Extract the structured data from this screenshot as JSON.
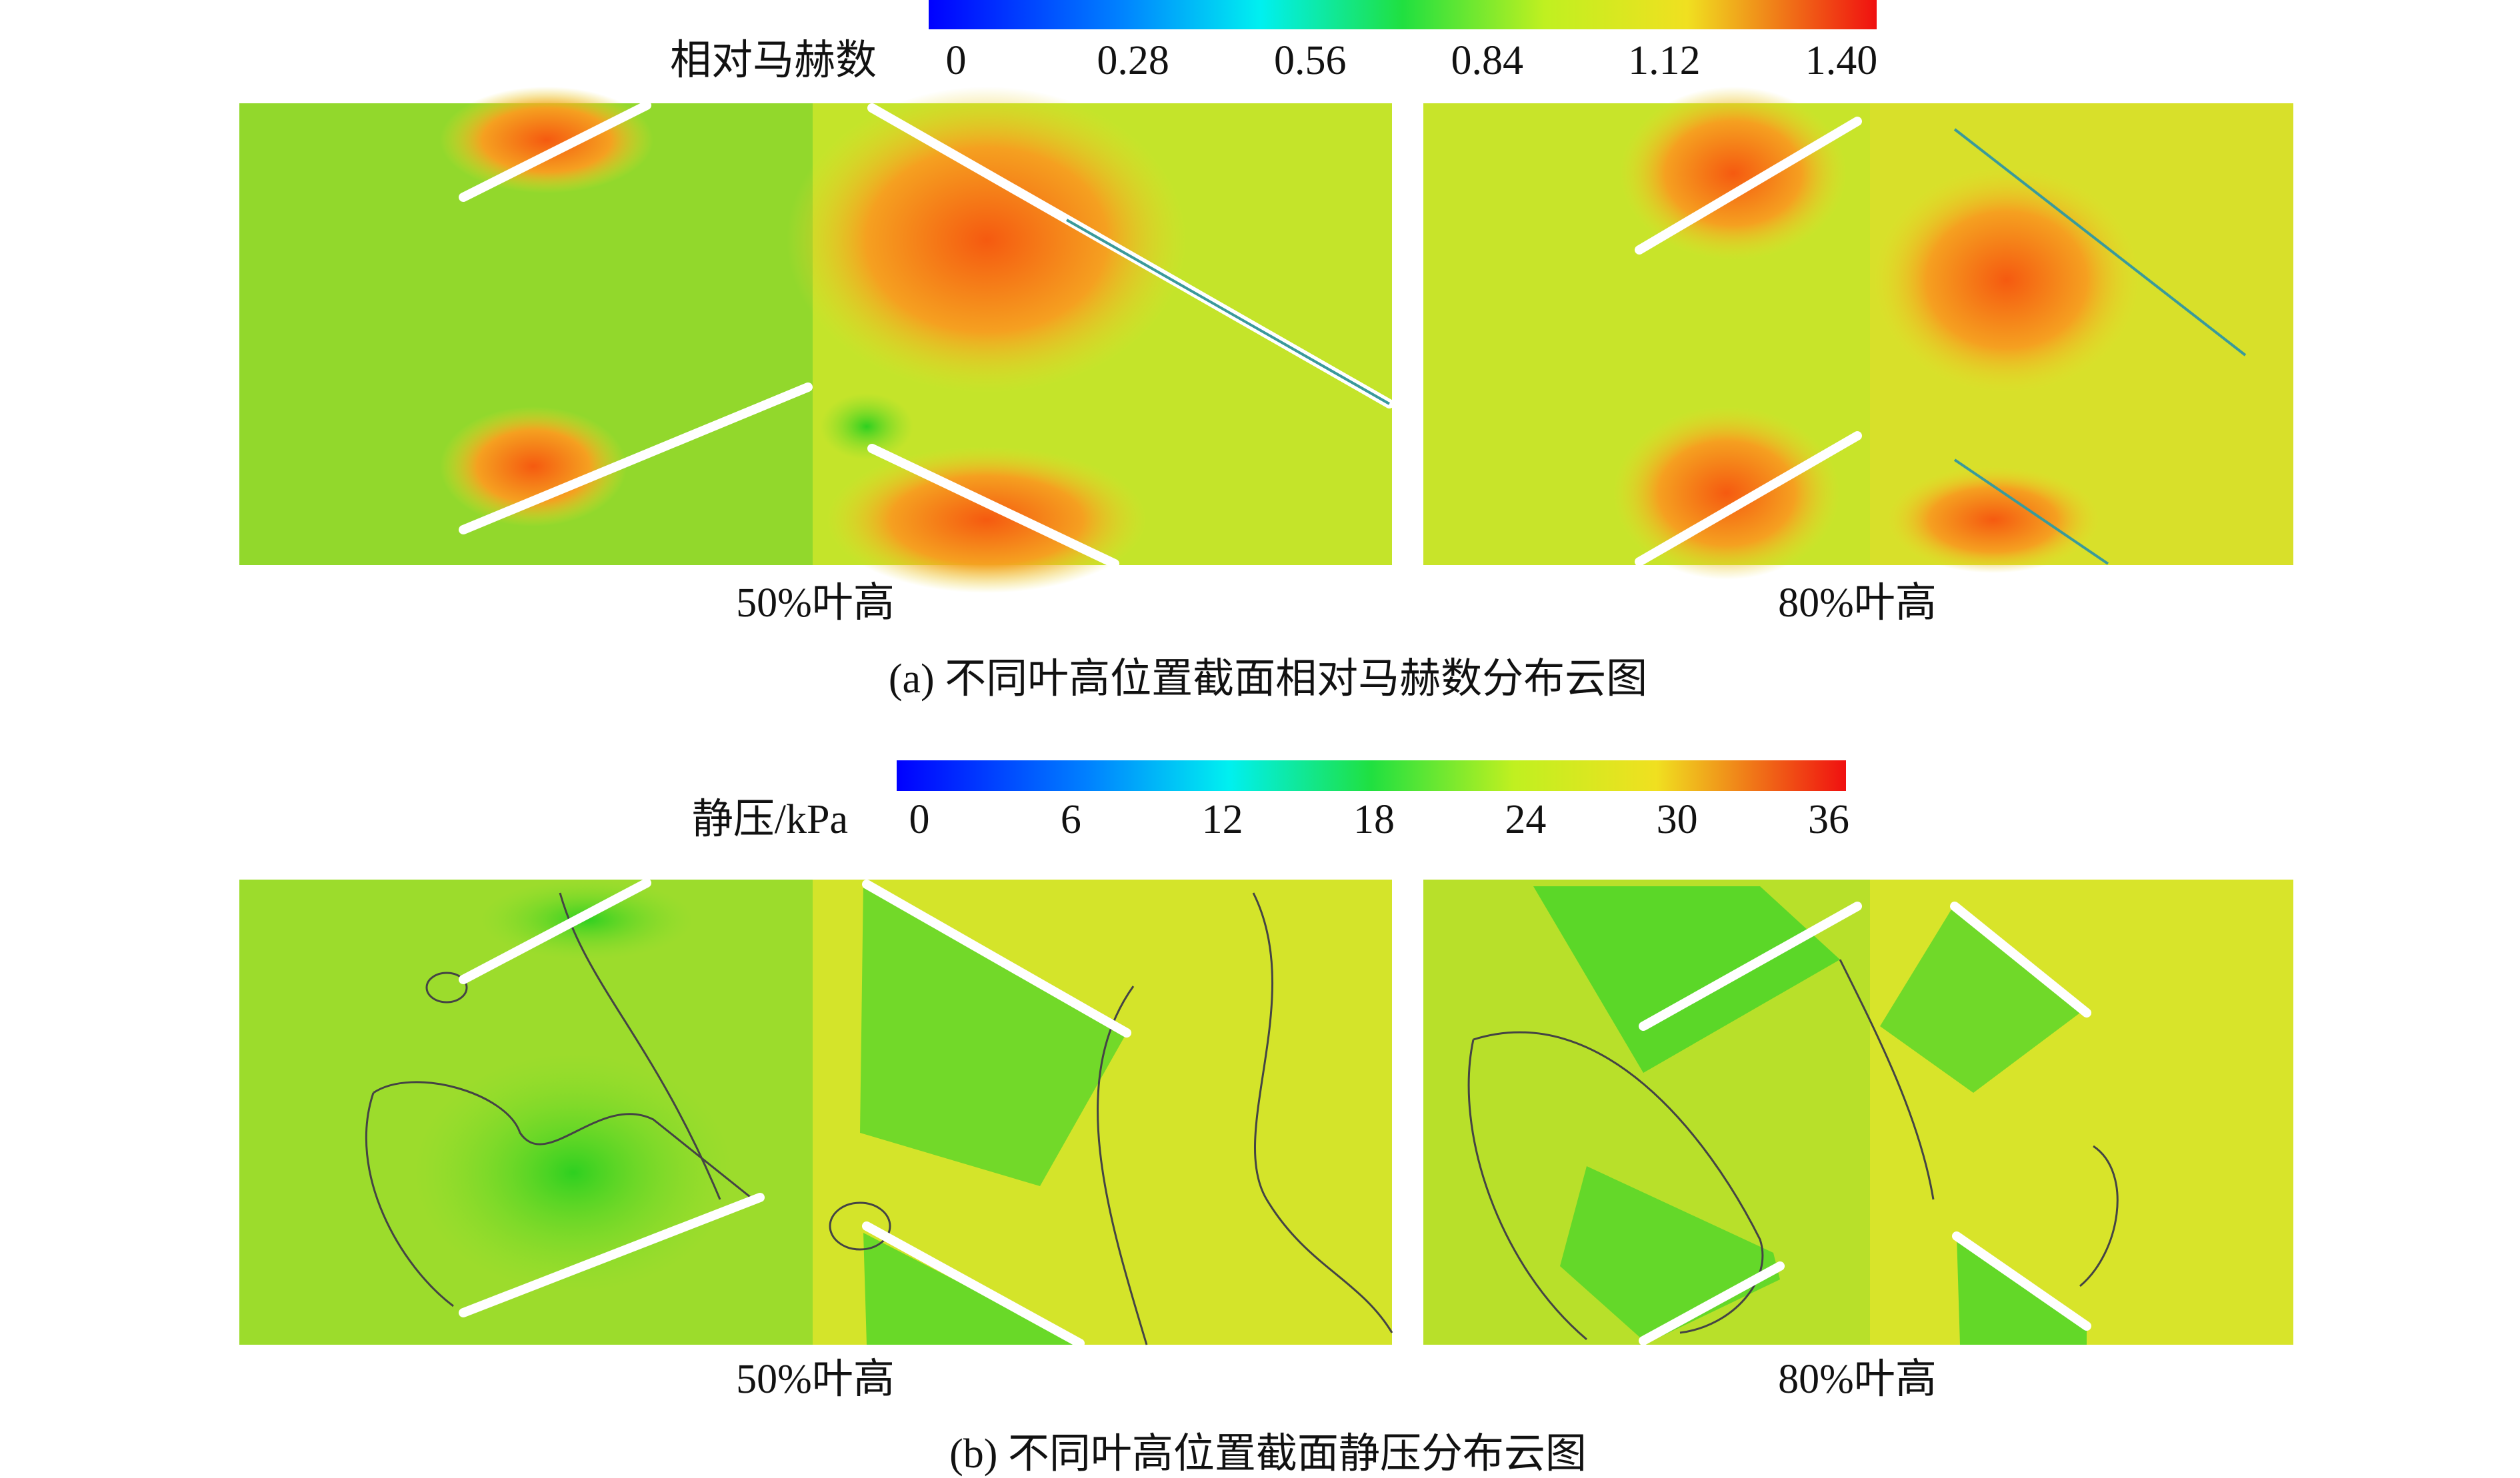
{
  "figure_a": {
    "colorbar": {
      "label": "相对马赫数",
      "ticks": [
        "0",
        "0.28",
        "0.56",
        "0.84",
        "1.12",
        "1.40"
      ]
    },
    "panels": [
      "50%叶高",
      "80%叶高"
    ],
    "caption": "(a) 不同叶高位置截面相对马赫数分布云图"
  },
  "figure_b": {
    "colorbar": {
      "label": "静压/kPa",
      "ticks": [
        "0",
        "6",
        "12",
        "18",
        "24",
        "30",
        "36"
      ]
    },
    "panels": [
      "50%叶高",
      "80%叶高"
    ],
    "caption": "(b) 不同叶高位置截面静压分布云图"
  }
}
